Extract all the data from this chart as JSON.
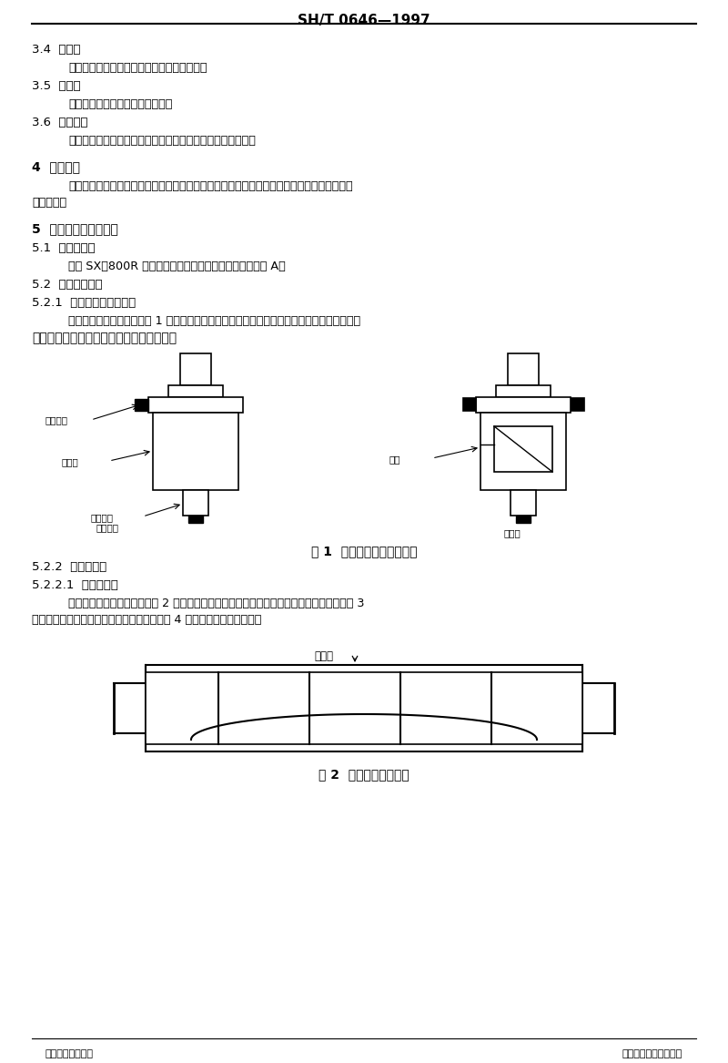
{
  "page_width": 8.0,
  "page_height": 11.67,
  "dpi": 100,
  "bg_color": "#ffffff",
  "header_text": "SH/T 0646—1997",
  "fig1_caption": "图 1  燃料压力调节器示意图",
  "fig2_caption": "图 2  拆除隔热板示意图",
  "footer_left": "石油化工行业标准",
  "footer_right": "山东省标准剴批准发布"
}
